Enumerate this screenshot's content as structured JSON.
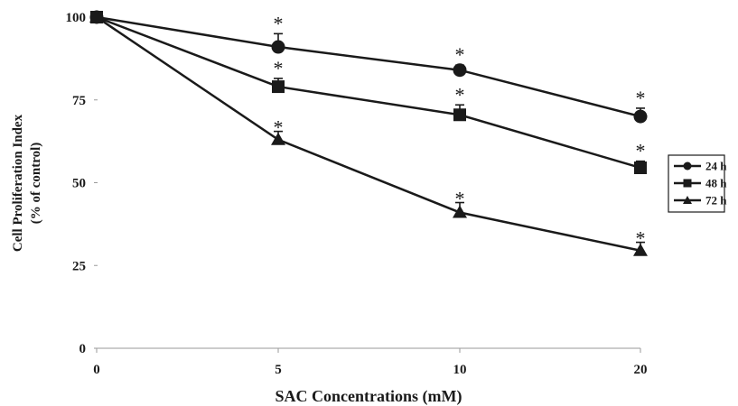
{
  "chart_data": {
    "type": "line",
    "xlabel": "SAC Concentrations (mM)",
    "ylabel_line1": "Cell Proliferation Index",
    "ylabel_line2": "(% of control)",
    "categories": [
      "0",
      "5",
      "10",
      "20"
    ],
    "y_ticks": [
      0,
      25,
      50,
      75,
      100
    ],
    "y_tick_labels": [
      "0",
      "25",
      "50",
      "75",
      "100"
    ],
    "ylim": [
      0,
      100
    ],
    "grid": false,
    "legend_position": "right",
    "significance_marker": "*",
    "series": [
      {
        "name": "24 h",
        "marker": "circle",
        "values": [
          100,
          91,
          84,
          70
        ],
        "errors": [
          1,
          4,
          1.5,
          2.5
        ],
        "significant": [
          false,
          true,
          true,
          true
        ]
      },
      {
        "name": "48 h",
        "marker": "square",
        "values": [
          100,
          79,
          70.5,
          54.5
        ],
        "errors": [
          1,
          2.5,
          3,
          2
        ],
        "significant": [
          false,
          true,
          true,
          true
        ]
      },
      {
        "name": "72 h",
        "marker": "triangle",
        "values": [
          100,
          63,
          41,
          29.5
        ],
        "errors": [
          1,
          2.5,
          3,
          2.5
        ],
        "significant": [
          false,
          true,
          true,
          true
        ]
      }
    ]
  }
}
